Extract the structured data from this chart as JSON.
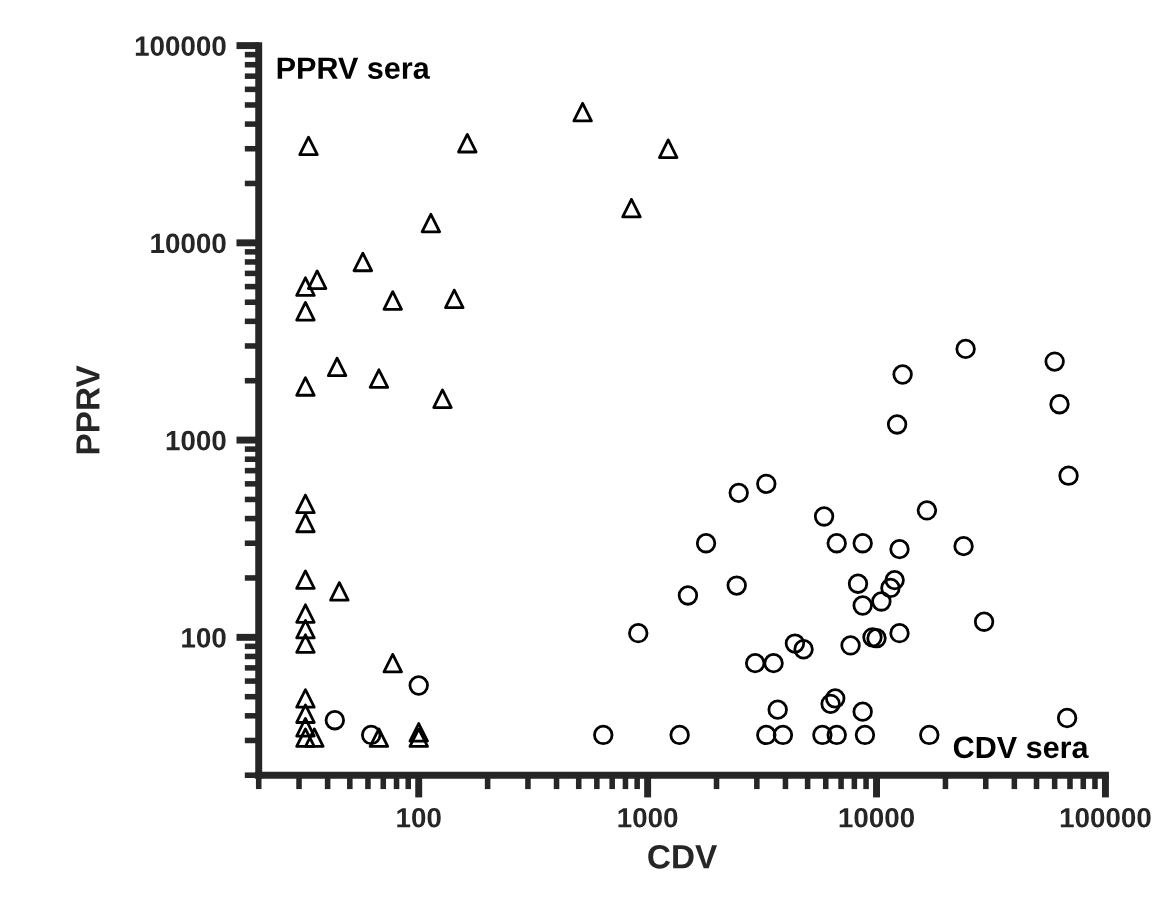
{
  "chart_data": {
    "type": "scatter",
    "xlabel": "CDV",
    "ylabel": "PPRV",
    "log": "xy",
    "grid": false,
    "legend": false,
    "xlim": [
      20,
      100000
    ],
    "ylim": [
      20,
      100000
    ],
    "xticks": [
      100,
      1000,
      10000,
      100000
    ],
    "yticks": [
      100,
      1000,
      10000,
      100000
    ],
    "series": [
      {
        "name": "PPRV sera",
        "color": "#000000",
        "marker": "triangle",
        "x": [
          33,
          163,
          520,
          1230,
          850,
          113,
          57,
          36,
          32,
          32,
          77,
          143,
          44,
          32,
          67,
          127,
          32,
          32,
          32,
          45,
          32,
          32,
          32,
          32,
          32,
          32,
          32,
          77,
          67,
          100,
          100,
          35
        ],
        "values": [
          31000,
          32000,
          46000,
          30000,
          15000,
          12600,
          8000,
          6500,
          6000,
          4500,
          5100,
          5200,
          2350,
          1870,
          2050,
          1620,
          475,
          380,
          196,
          171,
          132,
          110,
          93,
          49,
          41,
          35,
          31,
          74,
          31,
          33,
          31,
          31
        ]
      },
      {
        "name": "CDV sera",
        "color": "#000000",
        "marker": "circle",
        "x": [
          24500,
          60000,
          13000,
          63000,
          12300,
          69000,
          3300,
          2500,
          16600,
          5900,
          1800,
          6700,
          8700,
          24000,
          12600,
          1500,
          2450,
          8300,
          12000,
          11500,
          10500,
          8700,
          29500,
          12600,
          9600,
          10000,
          7700,
          4400,
          4800,
          2950,
          3550,
          3700,
          6600,
          6300,
          8700,
          68000,
          1380,
          3300,
          3900,
          5800,
          6700,
          8900,
          17000,
          43,
          62,
          100,
          640,
          910
        ],
        "values": [
          2900,
          2500,
          2150,
          1520,
          1200,
          660,
          600,
          540,
          440,
          410,
          300,
          300,
          300,
          290,
          280,
          163,
          183,
          187,
          195,
          178,
          152,
          145,
          120,
          105,
          100,
          99,
          91,
          93,
          87,
          74,
          74,
          43,
          49,
          46,
          42,
          39,
          32,
          32,
          32,
          32,
          32,
          32,
          32,
          38,
          32,
          57,
          32,
          105
        ]
      }
    ]
  }
}
